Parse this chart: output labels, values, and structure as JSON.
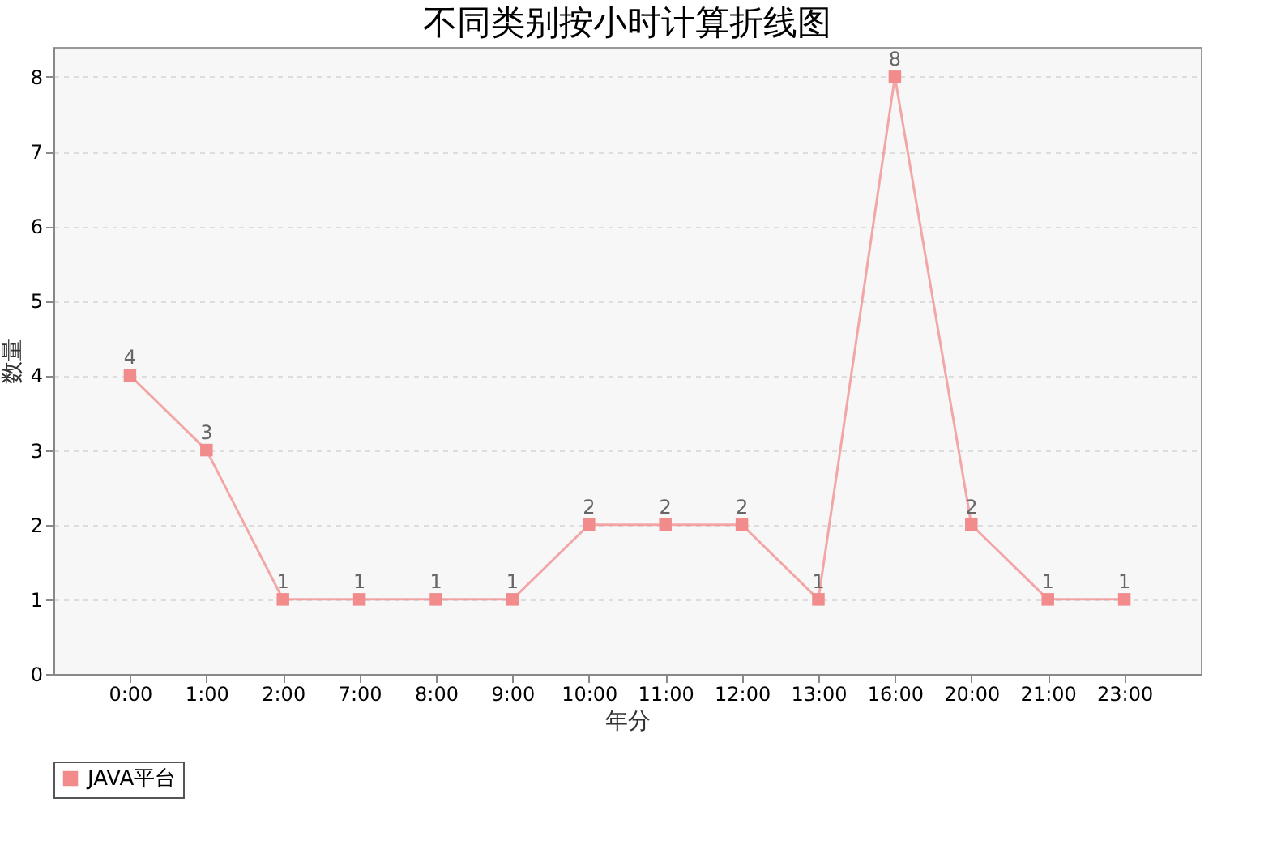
{
  "chart_data": {
    "type": "line",
    "title": "不同类别按小时计算折线图",
    "xlabel": "年分",
    "ylabel": "数量",
    "categories": [
      "0:00",
      "1:00",
      "2:00",
      "7:00",
      "8:00",
      "9:00",
      "10:00",
      "11:00",
      "12:00",
      "13:00",
      "16:00",
      "20:00",
      "21:00",
      "23:00"
    ],
    "series": [
      {
        "name": "JAVA平台",
        "color": "#f28b8b",
        "values": [
          4,
          3,
          1,
          1,
          1,
          1,
          2,
          2,
          2,
          1,
          8,
          2,
          1,
          1
        ]
      }
    ],
    "ylim": [
      0,
      8.4
    ],
    "yticks": [
      0,
      1,
      2,
      3,
      4,
      5,
      6,
      7,
      8
    ],
    "grid": "y",
    "legend": "bottom",
    "marker": "square",
    "line_style": "solid",
    "data_labels": true
  }
}
